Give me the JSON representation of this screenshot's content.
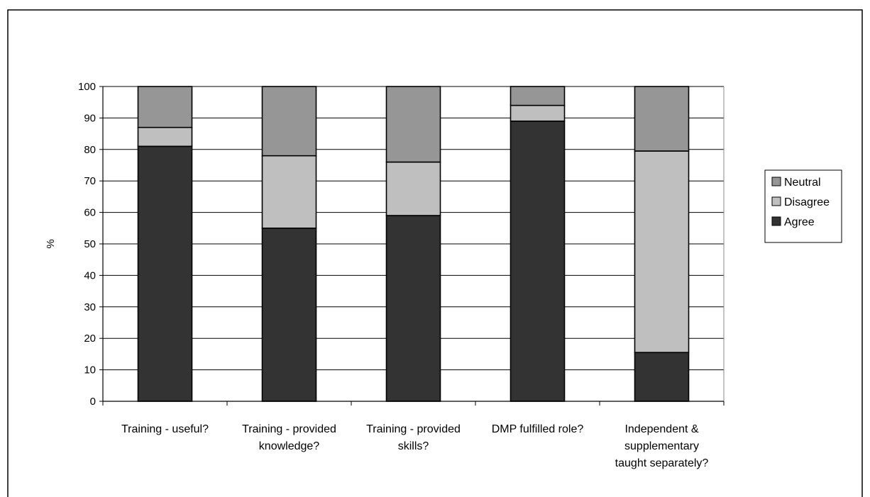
{
  "chart_data": {
    "type": "bar",
    "stacked": true,
    "title": "",
    "xlabel": "",
    "ylabel": "%",
    "ylim": [
      0,
      100
    ],
    "ytick_step": 10,
    "grid": true,
    "legend_position": "right",
    "categories": [
      [
        "Training - useful?"
      ],
      [
        "Training - provided",
        "knowledge?"
      ],
      [
        "Training - provided",
        "skills?"
      ],
      [
        "DMP fulfilled role?"
      ],
      [
        "Independent &",
        "supplementary",
        "taught separately?"
      ]
    ],
    "series": [
      {
        "name": "Agree",
        "color": "#333333",
        "values": [
          81,
          55,
          59,
          89,
          15.5
        ]
      },
      {
        "name": "Disagree",
        "color": "#bfbfbf",
        "values": [
          6,
          23,
          17,
          5,
          64
        ]
      },
      {
        "name": "Neutral",
        "color": "#969696",
        "values": [
          13,
          22,
          24,
          6,
          20.5
        ]
      }
    ],
    "legend_order": [
      "Neutral",
      "Disagree",
      "Agree"
    ]
  }
}
